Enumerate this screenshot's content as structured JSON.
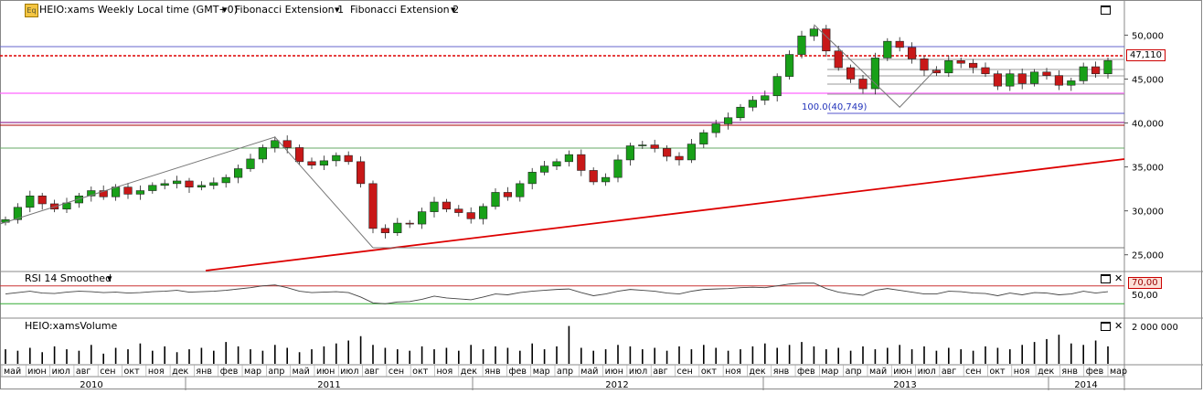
{
  "header": {
    "symbol_label": "HEIO:xams Weekly Local time (GMT+0)",
    "indicator1": "Fibonacci Extension 1",
    "indicator2": "Fibonacci Extension 2",
    "icon": "eq-icon"
  },
  "rsi_panel": {
    "label": "RSI 14 Smoothed",
    "level_label": "70,00",
    "tick": "50,00"
  },
  "volume_panel": {
    "label": "HEIO:xamsVolume",
    "tick": "2 000 000"
  },
  "price_axis": {
    "ticks": [
      "50,000",
      "45,000",
      "40,000",
      "35,000",
      "30,000",
      "25,000"
    ],
    "last_price": "47,110"
  },
  "fib_label": "100.0(40,749)",
  "colors": {
    "up": "#18a018",
    "down": "#c81818",
    "trend": "#dd0000",
    "fib_magenta": "#ff66ff",
    "fib_blue": "#8888dd"
  },
  "chart_data": {
    "type": "candlestick",
    "title": "HEIO:xams Weekly",
    "ylim": [
      23200,
      54000
    ],
    "y_ticks": [
      25000,
      30000,
      35000,
      40000,
      45000,
      50000
    ],
    "last_price": 47110,
    "x_month_labels": [
      "май",
      "июн",
      "июл",
      "авг",
      "сен",
      "окт",
      "ноя",
      "дек",
      "янв",
      "фев",
      "мар",
      "апр",
      "май",
      "июн",
      "июл",
      "авг",
      "сен",
      "окт",
      "ноя",
      "дек",
      "янв",
      "фев",
      "мар",
      "апр",
      "май",
      "июн",
      "июл",
      "авг",
      "сен",
      "окт",
      "ноя",
      "дек",
      "янв",
      "фев",
      "мар",
      "апр",
      "май",
      "июн",
      "июл",
      "авг",
      "сен",
      "окт",
      "ноя",
      "дек",
      "янв",
      "фев",
      "мар"
    ],
    "x_year_labels": [
      "2010",
      "2011",
      "2012",
      "2013",
      "2014"
    ],
    "close_path": [
      29000,
      30400,
      31700,
      30800,
      30200,
      30900,
      31700,
      32300,
      31600,
      32700,
      31900,
      32300,
      32900,
      33100,
      33400,
      32700,
      32900,
      33200,
      33800,
      34800,
      35900,
      37200,
      38000,
      37200,
      35600,
      35200,
      35700,
      36300,
      35600,
      33100,
      28000,
      27500,
      28600,
      28500,
      29900,
      31000,
      30200,
      29800,
      29100,
      30500,
      32100,
      31600,
      33100,
      34400,
      35100,
      35600,
      36400,
      34600,
      33300,
      33800,
      35800,
      37400,
      37500,
      37100,
      36200,
      35800,
      37600,
      38900,
      39900,
      40600,
      41800,
      42600,
      43100,
      45300,
      47800,
      49900,
      50700,
      48200,
      46300,
      45000,
      43900,
      47400,
      49300,
      48600,
      47300,
      46000,
      45700,
      47100,
      46800,
      46300,
      45600,
      44200,
      45600,
      44500,
      45800,
      45400,
      44300,
      44800,
      46400,
      45600,
      47110
    ],
    "volume_max": 2700000,
    "volumes": [
      1.0,
      0.9,
      1.1,
      0.8,
      1.2,
      1.0,
      0.9,
      1.3,
      0.7,
      1.1,
      1.0,
      1.4,
      0.9,
      1.2,
      0.8,
      1.0,
      1.1,
      0.9,
      1.5,
      1.2,
      1.0,
      0.9,
      1.3,
      1.1,
      0.8,
      1.0,
      1.2,
      1.4,
      1.6,
      1.9,
      1.3,
      1.1,
      1.0,
      0.9,
      1.2,
      1.0,
      1.1,
      0.9,
      1.3,
      1.0,
      1.2,
      1.1,
      0.9,
      1.4,
      1.0,
      1.2,
      2.6,
      1.1,
      0.9,
      1.0,
      1.3,
      1.2,
      1.0,
      1.1,
      0.9,
      1.2,
      1.0,
      1.3,
      1.1,
      0.9,
      1.0,
      1.2,
      1.4,
      1.1,
      1.3,
      1.5,
      1.2,
      1.0,
      1.1,
      0.9,
      1.2,
      1.0,
      1.1,
      1.3,
      1.0,
      1.2,
      0.9,
      1.1,
      1.0,
      0.9,
      1.2,
      1.1,
      1.0,
      1.3,
      1.5,
      1.7,
      2.0,
      1.4,
      1.3,
      1.6,
      1.2
    ],
    "rsi_overbought": 70,
    "rsi_path": [
      52,
      55,
      58,
      54,
      53,
      56,
      58,
      57,
      55,
      56,
      54,
      55,
      57,
      58,
      60,
      56,
      57,
      58,
      60,
      63,
      66,
      70,
      72,
      66,
      58,
      55,
      56,
      57,
      55,
      45,
      32,
      30,
      34,
      35,
      40,
      47,
      43,
      41,
      39,
      45,
      52,
      50,
      55,
      58,
      60,
      62,
      63,
      55,
      48,
      52,
      58,
      62,
      60,
      58,
      54,
      52,
      58,
      62,
      63,
      64,
      66,
      67,
      66,
      70,
      74,
      76,
      76,
      64,
      56,
      52,
      49,
      60,
      64,
      60,
      56,
      52,
      52,
      58,
      57,
      54,
      53,
      48,
      54,
      50,
      55,
      54,
      50,
      52,
      58,
      54,
      57
    ]
  }
}
